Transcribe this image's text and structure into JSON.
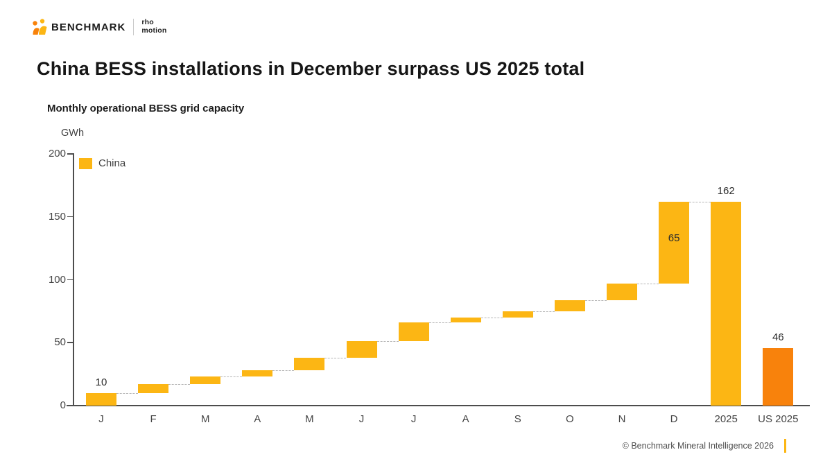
{
  "header": {
    "brand": "BENCHMARK",
    "partner_line1": "rho",
    "partner_line2": "motion"
  },
  "title": "China BESS installations in December surpass US 2025 total",
  "subtitle": "Monthly operational BESS grid capacity",
  "chart_data": {
    "type": "bar",
    "subtype": "waterfall",
    "unit_label": "GWh",
    "legend": [
      {
        "label": "China",
        "color": "#FCB614"
      }
    ],
    "legend_position": "top-left",
    "grid": false,
    "categories": [
      "J",
      "F",
      "M",
      "A",
      "M",
      "J",
      "J",
      "A",
      "S",
      "O",
      "N",
      "D",
      "2025",
      "US 2025"
    ],
    "monthly_values": [
      10,
      7,
      6,
      5,
      10,
      13,
      15,
      4,
      5,
      9,
      13,
      65
    ],
    "cumulative_end": [
      10,
      17,
      23,
      28,
      38,
      51,
      66,
      70,
      75,
      84,
      97,
      162
    ],
    "total_2025": {
      "category": "2025",
      "value": 162
    },
    "us_2025": {
      "category": "US 2025",
      "value": 46
    },
    "ylim": [
      0,
      200
    ],
    "yticks": [
      0,
      50,
      100,
      150,
      200
    ],
    "data_labels": [
      {
        "bar_index": 0,
        "text": "10",
        "placement": "above"
      },
      {
        "bar_index": 11,
        "text": "65",
        "placement": "inside"
      },
      {
        "bar_index": 12,
        "text": "162",
        "placement": "above"
      },
      {
        "bar_index": 13,
        "text": "46",
        "placement": "above"
      }
    ],
    "colors": {
      "china": "#FCB614",
      "us": "#F8820C"
    }
  },
  "footer": {
    "copyright": "© Benchmark Mineral Intelligence 2026",
    "accent_color": "#FCB614"
  }
}
